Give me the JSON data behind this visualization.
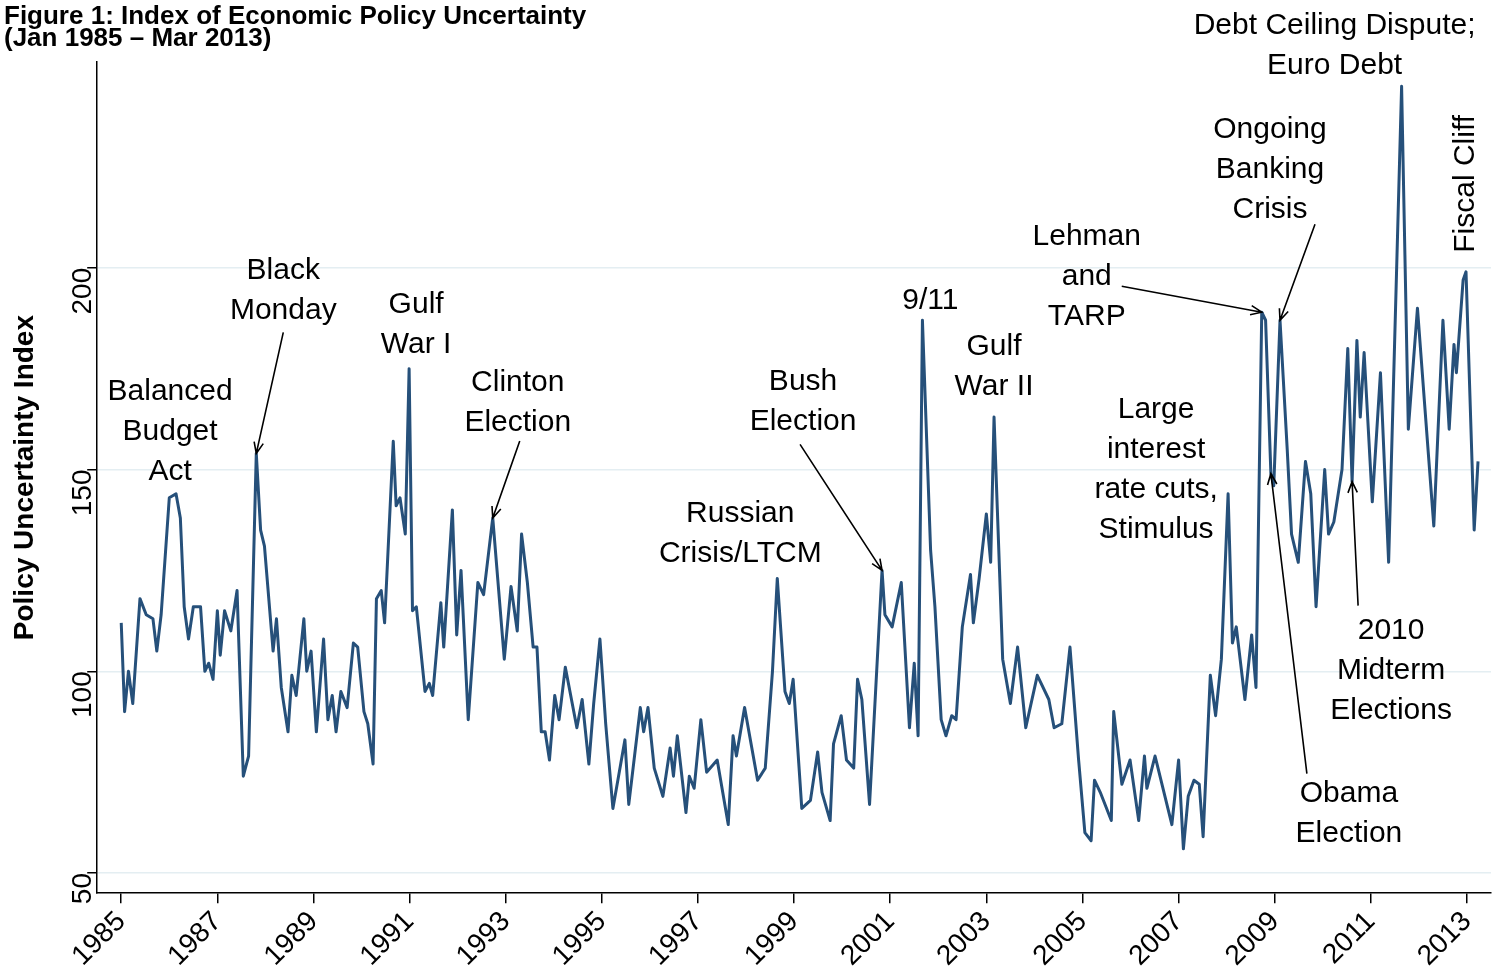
{
  "chart_data": {
    "type": "line",
    "title": "Figure 1: Index of Economic Policy Uncertainty",
    "subtitle": "(Jan 1985 – Mar 2013)",
    "ylabel": "Policy Uncertainty Index",
    "annotations": [
      {
        "text": "Balanced\nBudget\nAct",
        "x": 1986.1,
        "y": 144
      },
      {
        "text": "Black\nMonday",
        "x": 1987.81,
        "y": 154
      },
      {
        "text": "Gulf\nWar I",
        "x": 1990.99,
        "y": 175
      },
      {
        "text": "Clinton\nElection",
        "x": 1992.73,
        "y": 138
      },
      {
        "text": "Russian\nCrisis/LTCM",
        "x": 1998.65,
        "y": 123
      },
      {
        "text": "Bush\nElection",
        "x": 2000.83,
        "y": 125
      },
      {
        "text": "9/11",
        "x": 2001.67,
        "y": 187
      },
      {
        "text": "Gulf\nWar II",
        "x": 2003.16,
        "y": 163
      },
      {
        "text": "Lehman\nand\nTARP",
        "x": 2008.73,
        "y": 189
      },
      {
        "text": "Large\ninterest\nrate cuts,\nStimulus",
        "x": 2008.03,
        "y": 144
      },
      {
        "text": "Ongoing\nBanking\nCrisis",
        "x": 2009.11,
        "y": 187
      },
      {
        "text": "Debt Ceiling Dispute;\nEuro Debt",
        "x": 2011.64,
        "y": 245
      },
      {
        "text": "Obama\nElection",
        "x": 2008.92,
        "y": 149
      },
      {
        "text": "2010\nMidterm\nElections",
        "x": 2010.61,
        "y": 147
      },
      {
        "text": "Fiscal Cliff",
        "x": 2012.98,
        "y": 199
      }
    ],
    "x": [
      1985.0,
      1985.07,
      1985.15,
      1985.24,
      1985.39,
      1985.52,
      1985.66,
      1985.74,
      1985.83,
      1986.0,
      1986.14,
      1986.23,
      1986.31,
      1986.4,
      1986.5,
      1986.65,
      1986.74,
      1986.82,
      1986.91,
      1987.0,
      1987.06,
      1987.15,
      1987.28,
      1987.41,
      1987.54,
      1987.65,
      1987.81,
      1987.9,
      1987.98,
      1988.16,
      1988.23,
      1988.33,
      1988.47,
      1988.55,
      1988.64,
      1988.8,
      1988.86,
      1988.95,
      1989.06,
      1989.21,
      1989.3,
      1989.39,
      1989.47,
      1989.57,
      1989.7,
      1989.83,
      1989.92,
      1990.05,
      1990.13,
      1990.24,
      1990.31,
      1990.41,
      1990.48,
      1990.66,
      1990.72,
      1990.8,
      1990.91,
      1990.99,
      1991.06,
      1991.14,
      1991.32,
      1991.41,
      1991.48,
      1991.65,
      1991.71,
      1991.89,
      1991.98,
      1992.07,
      1992.22,
      1992.42,
      1992.54,
      1992.73,
      1992.97,
      1993.11,
      1993.24,
      1993.33,
      1993.45,
      1993.57,
      1993.65,
      1993.74,
      1993.82,
      1993.91,
      1994.02,
      1994.11,
      1994.24,
      1994.48,
      1994.59,
      1994.73,
      1994.83,
      1994.96,
      1995.08,
      1995.23,
      1995.48,
      1995.56,
      1995.8,
      1995.87,
      1995.96,
      1996.09,
      1996.27,
      1996.42,
      1996.49,
      1996.57,
      1996.75,
      1996.82,
      1996.92,
      1997.06,
      1997.18,
      1997.4,
      1997.63,
      1997.73,
      1997.8,
      1997.97,
      1998.24,
      1998.4,
      1998.55,
      1998.65,
      1998.81,
      1998.9,
      1998.98,
      1999.16,
      1999.34,
      1999.49,
      1999.58,
      1999.75,
      1999.82,
      1999.98,
      2000.09,
      2000.24,
      2000.32,
      2000.41,
      2000.57,
      2000.83,
      2000.89,
      2001.04,
      2001.23,
      2001.4,
      2001.5,
      2001.58,
      2001.67,
      2001.84,
      2001.93,
      2002.06,
      2002.16,
      2002.28,
      2002.37,
      2002.5,
      2002.67,
      2002.73,
      2002.85,
      2003.0,
      2003.09,
      2003.16,
      2003.34,
      2003.5,
      2003.65,
      2003.82,
      2004.06,
      2004.3,
      2004.41,
      2004.57,
      2004.74,
      2004.92,
      2005.05,
      2005.18,
      2005.25,
      2005.37,
      2005.6,
      2005.65,
      2005.82,
      2005.99,
      2006.17,
      2006.29,
      2006.34,
      2006.51,
      2006.86,
      2007.0,
      2007.1,
      2007.2,
      2007.32,
      2007.43,
      2007.51,
      2007.66,
      2007.77,
      2007.89,
      2008.03,
      2008.12,
      2008.2,
      2008.38,
      2008.52,
      2008.61,
      2008.73,
      2008.81,
      2008.92,
      2008.98,
      2009.11,
      2009.26,
      2009.35,
      2009.49,
      2009.64,
      2009.75,
      2009.86,
      2010.04,
      2010.12,
      2010.23,
      2010.4,
      2010.52,
      2010.61,
      2010.71,
      2010.78,
      2010.86,
      2011.03,
      2011.2,
      2011.37,
      2011.64,
      2011.78,
      2011.97,
      2012.12,
      2012.31,
      2012.5,
      2012.63,
      2012.73,
      2012.78,
      2012.92,
      2012.98,
      2013.15,
      2013.23
    ],
    "series": [
      {
        "color": "#26507a",
        "values": [
          112,
          90,
          100,
          92,
          118,
          114,
          113,
          105,
          114,
          143,
          144,
          138,
          116,
          108,
          116,
          116,
          100,
          102,
          98,
          115,
          104,
          115,
          110,
          120,
          74,
          79,
          154,
          135,
          131,
          105,
          113,
          96,
          85,
          99,
          94,
          113,
          100,
          105,
          85,
          108,
          88,
          94,
          85,
          95,
          91,
          107,
          106,
          90,
          87,
          77,
          118,
          120,
          112,
          157,
          141,
          143,
          134,
          175,
          115,
          116,
          95,
          97,
          94,
          117,
          106,
          140,
          109,
          125,
          88,
          122,
          119,
          138,
          103,
          121,
          110,
          134,
          122,
          106,
          106,
          85,
          85,
          78,
          94,
          88,
          101,
          86,
          93,
          77,
          92,
          108,
          87,
          66,
          83,
          67,
          91,
          85,
          91,
          76,
          69,
          81,
          74,
          84,
          65,
          74,
          71,
          88,
          75,
          78,
          62,
          84,
          79,
          91,
          73,
          76,
          100,
          123,
          95,
          92,
          98,
          66,
          68,
          80,
          70,
          63,
          82,
          89,
          78,
          76,
          98,
          93,
          67,
          125,
          114,
          111,
          122,
          86,
          102,
          84,
          187,
          130,
          116,
          88,
          84,
          89,
          88,
          111,
          124,
          112,
          123,
          139,
          127,
          163,
          103,
          92,
          106,
          86,
          99,
          93,
          86,
          87,
          106,
          78,
          60,
          58,
          73,
          70,
          63,
          90,
          72,
          78,
          63,
          79,
          71,
          79,
          62,
          78,
          56,
          69,
          73,
          72,
          59,
          99,
          89,
          103,
          144,
          107,
          111,
          93,
          109,
          96,
          189,
          187,
          149,
          146,
          187,
          155,
          134,
          127,
          152,
          144,
          116,
          150,
          134,
          137,
          150,
          180,
          147,
          182,
          163,
          179,
          142,
          174,
          127,
          245,
          160,
          190,
          166,
          136,
          187,
          160,
          181,
          174,
          197,
          199,
          135,
          152
        ]
      }
    ],
    "xlim": [
      1984.5,
      2013.5
    ],
    "ylim": [
      45,
      251
    ],
    "xticks": [
      1985,
      1987,
      1989,
      1991,
      1993,
      1995,
      1997,
      1999,
      2001,
      2003,
      2005,
      2007,
      2009,
      2011,
      2013
    ],
    "yticks": [
      50,
      100,
      150,
      200
    ],
    "grid": "y",
    "marker": "none",
    "line_style": "solid"
  }
}
